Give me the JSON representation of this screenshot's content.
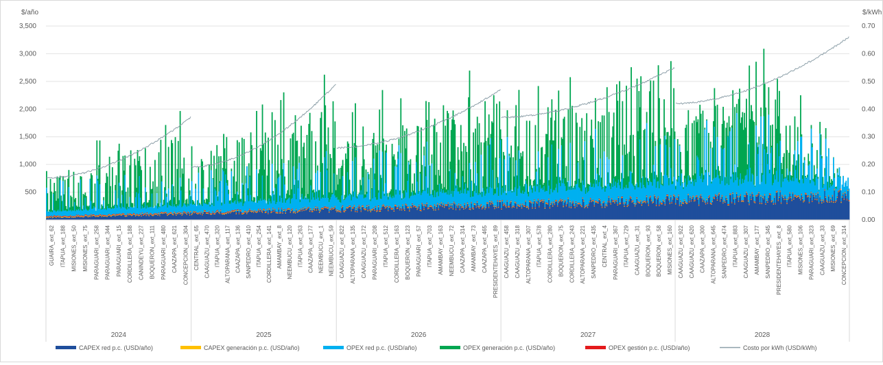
{
  "chart_data": {
    "type": "bar",
    "left_axis_unit": "$/año",
    "right_axis_unit": "$/kWh",
    "yticks_left": [
      "500",
      "1,000",
      "1,500",
      "2,000",
      "2,500",
      "3,000",
      "3,500"
    ],
    "yticks_left_values": [
      500,
      1000,
      1500,
      2000,
      2500,
      3000,
      3500
    ],
    "yticks_right": [
      "0.00",
      "0.10",
      "0.20",
      "0.30",
      "0.40",
      "0.50",
      "0.60",
      "0.70"
    ],
    "yticks_right_values": [
      0,
      0.1,
      0.2,
      0.3,
      0.4,
      0.5,
      0.6,
      0.7
    ],
    "ylim_left": [
      0,
      3500
    ],
    "ylim_right": [
      0,
      0.7
    ],
    "grid": true,
    "legend_position": "bottom",
    "years": [
      "2024",
      "2025",
      "2026",
      "2027",
      "2028"
    ],
    "categories_by_year": [
      [
        "GUAIRA_ext_62",
        "ITAPUA_ext_188",
        "MISIONES_ext_50",
        "MISIONES_ext_75",
        "PARAGUARI_ext_258",
        "PARAGUARI_ext_344",
        "PARAGUARI_ext_15",
        "CORDILLERA_ext_188",
        "CANINDEYU_ext_227",
        "BOQUERON_ext_111",
        "PARAGUARI_ext_480",
        "CAAZAPA_ext_621",
        "CONCEPCION_ext_304"
      ],
      [
        "CENTRAL_ext_65",
        "CAAGUAZU_ext_470",
        "ITAPUA_ext_320",
        "ALTOPARANA_ext_117",
        "CAAZAPA_ext_136",
        "SANPEDRO_ext_410",
        "ITAPUA_ext_254",
        "CORDILLERA_ext_141",
        "AMAMBAY_ext_8",
        "NEEMBUCU_ext_120",
        "ITAPUA_ext_263",
        "CAAZAPA_ext_177",
        "NEEMBUCU_ext_1",
        "NEEMBUCU_ext_59"
      ],
      [
        "CAAGUAZU_ext_822",
        "ALTOPARANA_ext_135",
        "CAAGUAZU_ext_172",
        "PARAGUARI_ext_208",
        "ITAPUA_ext_512",
        "CORDILLERA_ext_163",
        "BOQUERON_ext_123",
        "PARAGUARI_ext_57",
        "ITAPUA_ext_703",
        "AMAMBAY_ext_163",
        "NEEMBUCU_ext_72",
        "CAAZAPA_ext_314",
        "AMAMBAY_ext_73",
        "CAAZAPA_ext_465",
        "PRESIDENTEHAYES_ext_89"
      ],
      [
        "CAAGUAZU_ext_458",
        "CAAGUAZU_ext_318",
        "ALTOPARANA_ext_307",
        "ITAPUA_ext_578",
        "CORDILLERA_ext_280",
        "BOQUERON_ext_75",
        "CORDILLERA_ext_243",
        "ALTOPARANA_ext_221",
        "SANPEDRO_ext_435",
        "CENTRAL_ext_4",
        "PARAGUARI_ext_367",
        "ITAPUA_ext_729",
        "CAAGUAZU_ext_31",
        "BOQUERON_ext_93",
        "BOQUERON_ext_58",
        "MISIONES_ext_160"
      ],
      [
        "CAAGUAZU_ext_922",
        "CAAGUAZU_ext_620",
        "CAAZAPA_ext_300",
        "ALTOPARANA_ext_645",
        "SANPEDRO_ext_474",
        "ITAPUA_ext_883",
        "CAAGUAZU_ext_307",
        "AMAMBAY_ext_177",
        "SANPEDRO_ext_345",
        "PRESIDENTEHAYES_ext_8",
        "ITAPUA_ext_580",
        "MISIONES_ext_106",
        "PARAGUARI_ext_323",
        "CAAGUAZU_ext_33",
        "MISIONES_ext_69",
        "CONCEPCION_ext_314"
      ]
    ],
    "year_start_costs": [
      0.15,
      0.19,
      0.26,
      0.37,
      0.42
    ],
    "year_end_costs": [
      0.37,
      0.49,
      0.47,
      0.55,
      0.66
    ],
    "capex_red_range": [
      50,
      500
    ],
    "opex_red_range": [
      90,
      800
    ],
    "peak_totals_by_year": [
      1350,
      1800,
      2000,
      2300,
      2530
    ],
    "series": [
      {
        "name": "CAPEX red p.c. (USD/año)",
        "color": "#1f4e9c"
      },
      {
        "name": "CAPEX generación p.c. (USD/año)",
        "color": "#ffc000"
      },
      {
        "name": "OPEX red p.c. (USD/año)",
        "color": "#00b0f0"
      },
      {
        "name": "OPEX generación p.c. (USD/año)",
        "color": "#00a651"
      },
      {
        "name": "OPEX gestión p.c. (USD/año)",
        "color": "#e41a1c"
      },
      {
        "name": "Costo por kWh (USD/kWh)",
        "color": "#8c9fa8"
      }
    ]
  }
}
